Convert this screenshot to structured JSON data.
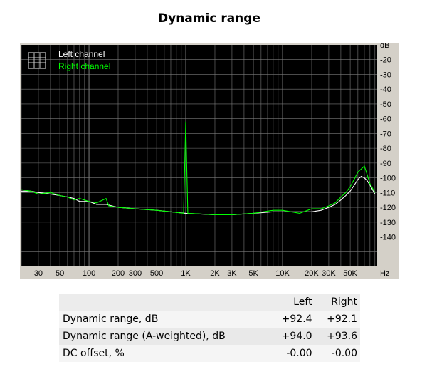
{
  "title": "Dynamic range",
  "chart_data": {
    "type": "line",
    "x_scale": "log",
    "x_unit": "Hz",
    "y_unit": "dB",
    "xlim": [
      20,
      95000
    ],
    "ylim": [
      -160,
      -10
    ],
    "x_ticks": [
      {
        "value": 30,
        "label": "30"
      },
      {
        "value": 50,
        "label": "50"
      },
      {
        "value": 100,
        "label": "100"
      },
      {
        "value": 200,
        "label": "200"
      },
      {
        "value": 300,
        "label": "300"
      },
      {
        "value": 500,
        "label": "500"
      },
      {
        "value": 1000,
        "label": "1K"
      },
      {
        "value": 2000,
        "label": "2K"
      },
      {
        "value": 3000,
        "label": "3K"
      },
      {
        "value": 5000,
        "label": "5K"
      },
      {
        "value": 10000,
        "label": "10K"
      },
      {
        "value": 20000,
        "label": "20K"
      },
      {
        "value": 30000,
        "label": "30K"
      },
      {
        "value": 50000,
        "label": "50K"
      }
    ],
    "y_ticks": [
      {
        "value": -20,
        "label": "-20"
      },
      {
        "value": -30,
        "label": "-30"
      },
      {
        "value": -40,
        "label": "-40"
      },
      {
        "value": -50,
        "label": "-50"
      },
      {
        "value": -60,
        "label": "-60"
      },
      {
        "value": -70,
        "label": "-70"
      },
      {
        "value": -80,
        "label": "-80"
      },
      {
        "value": -90,
        "label": "-90"
      },
      {
        "value": -100,
        "label": "-100"
      },
      {
        "value": -110,
        "label": "-110"
      },
      {
        "value": -120,
        "label": "-120"
      },
      {
        "value": -130,
        "label": "-130"
      },
      {
        "value": -140,
        "label": "-140"
      }
    ],
    "grid": true,
    "legend_position": "top-left",
    "series": [
      {
        "name": "Left channel",
        "color": "#ffffff",
        "points": [
          [
            20,
            -109
          ],
          [
            25,
            -109
          ],
          [
            30,
            -110
          ],
          [
            40,
            -111
          ],
          [
            50,
            -112
          ],
          [
            60,
            -113
          ],
          [
            70,
            -114
          ],
          [
            80,
            -116
          ],
          [
            100,
            -116
          ],
          [
            120,
            -118
          ],
          [
            150,
            -118
          ],
          [
            200,
            -120
          ],
          [
            300,
            -121
          ],
          [
            500,
            -122
          ],
          [
            700,
            -123
          ],
          [
            1000,
            -124
          ],
          [
            2000,
            -125
          ],
          [
            3000,
            -125
          ],
          [
            5000,
            -124
          ],
          [
            8000,
            -123
          ],
          [
            10000,
            -123
          ],
          [
            15000,
            -123
          ],
          [
            20000,
            -123
          ],
          [
            25000,
            -122
          ],
          [
            30000,
            -120
          ],
          [
            35000,
            -118
          ],
          [
            40000,
            -115
          ],
          [
            45000,
            -112
          ],
          [
            50000,
            -109
          ],
          [
            55000,
            -105
          ],
          [
            60000,
            -101
          ],
          [
            65000,
            -99
          ],
          [
            70000,
            -100
          ],
          [
            75000,
            -102
          ],
          [
            80000,
            -105
          ],
          [
            85000,
            -108
          ],
          [
            90000,
            -111
          ]
        ]
      },
      {
        "name": "Right channel",
        "color": "#00ff00",
        "points": [
          [
            20,
            -108
          ],
          [
            25,
            -109
          ],
          [
            30,
            -111
          ],
          [
            40,
            -110
          ],
          [
            50,
            -112
          ],
          [
            60,
            -113
          ],
          [
            70,
            -115
          ],
          [
            80,
            -114
          ],
          [
            100,
            -116
          ],
          [
            120,
            -117
          ],
          [
            150,
            -114
          ],
          [
            160,
            -119
          ],
          [
            200,
            -120
          ],
          [
            300,
            -121
          ],
          [
            500,
            -122
          ],
          [
            700,
            -123
          ],
          [
            950,
            -124
          ],
          [
            1000,
            -62
          ],
          [
            1050,
            -124
          ],
          [
            2000,
            -125
          ],
          [
            3000,
            -125
          ],
          [
            5000,
            -124
          ],
          [
            8000,
            -122
          ],
          [
            10000,
            -122
          ],
          [
            15000,
            -124
          ],
          [
            20000,
            -121
          ],
          [
            25000,
            -121
          ],
          [
            30000,
            -119
          ],
          [
            35000,
            -117
          ],
          [
            40000,
            -113
          ],
          [
            45000,
            -110
          ],
          [
            50000,
            -106
          ],
          [
            55000,
            -101
          ],
          [
            60000,
            -96
          ],
          [
            65000,
            -94
          ],
          [
            70000,
            -92
          ],
          [
            75000,
            -98
          ],
          [
            80000,
            -104
          ],
          [
            85000,
            -107
          ],
          [
            90000,
            -110
          ]
        ]
      }
    ]
  },
  "table": {
    "headers": [
      "",
      "Left",
      "Right"
    ],
    "rows": [
      {
        "label": "Dynamic range, dB",
        "left": "+92.4",
        "right": "+92.1"
      },
      {
        "label": "Dynamic range (A-weighted), dB",
        "left": "+94.0",
        "right": "+93.6"
      },
      {
        "label": "DC offset, %",
        "left": "-0.00",
        "right": "-0.00"
      }
    ]
  }
}
